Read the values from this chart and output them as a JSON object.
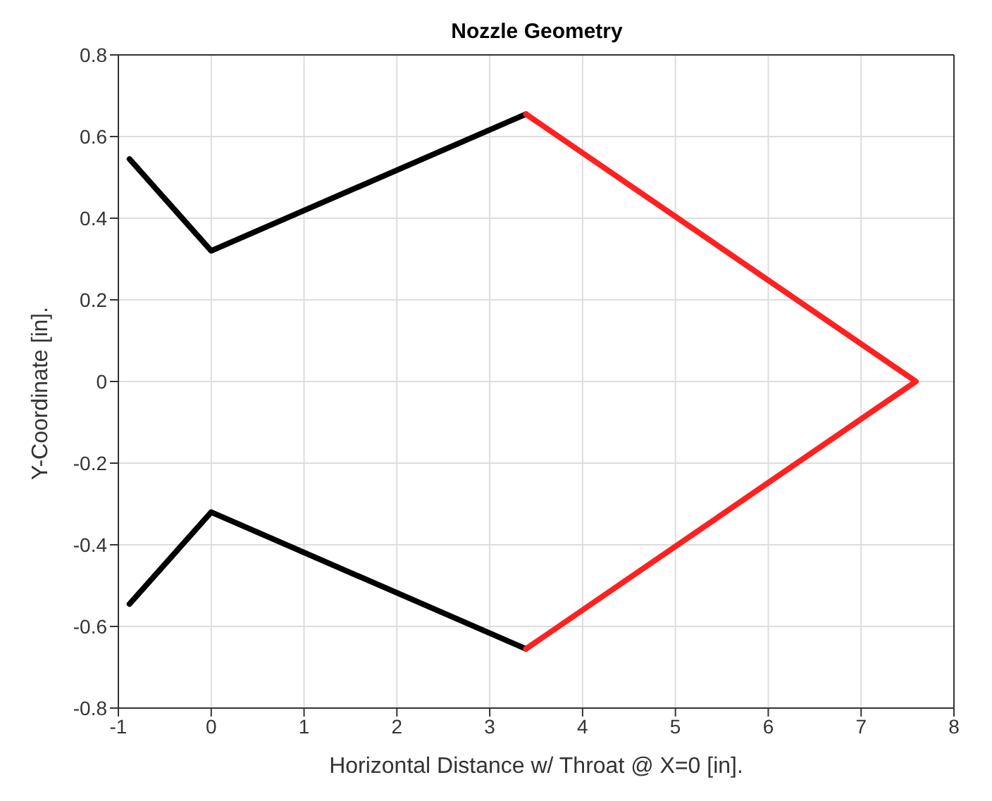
{
  "chart_data": {
    "type": "line",
    "title": "Nozzle Geometry",
    "xlabel": "Horizontal Distance w/ Throat @ X=0 [in].",
    "ylabel": "Y-Coordinate [in].",
    "series": [
      {
        "color": "#000000",
        "x": [
          -0.88,
          0,
          3.39
        ],
        "values": [
          0.545,
          0.32,
          0.655
        ]
      },
      {
        "color": "#000000",
        "x": [
          -0.88,
          0,
          3.39
        ],
        "values": [
          -0.545,
          -0.32,
          -0.655
        ]
      },
      {
        "color": "#ff2020",
        "x": [
          3.39,
          7.59,
          3.39
        ],
        "values": [
          0.655,
          0,
          -0.655
        ]
      }
    ],
    "xlim": [
      -1,
      8
    ],
    "xticks": [
      -1,
      0,
      1,
      2,
      3,
      4,
      5,
      6,
      7,
      8
    ],
    "ylim": [
      -0.8,
      0.8
    ],
    "yticks": [
      -0.8,
      -0.6,
      -0.4,
      -0.2,
      0,
      0.2,
      0.4,
      0.6,
      0.8
    ],
    "grid": true,
    "marker": "none",
    "line_style": "solid"
  }
}
